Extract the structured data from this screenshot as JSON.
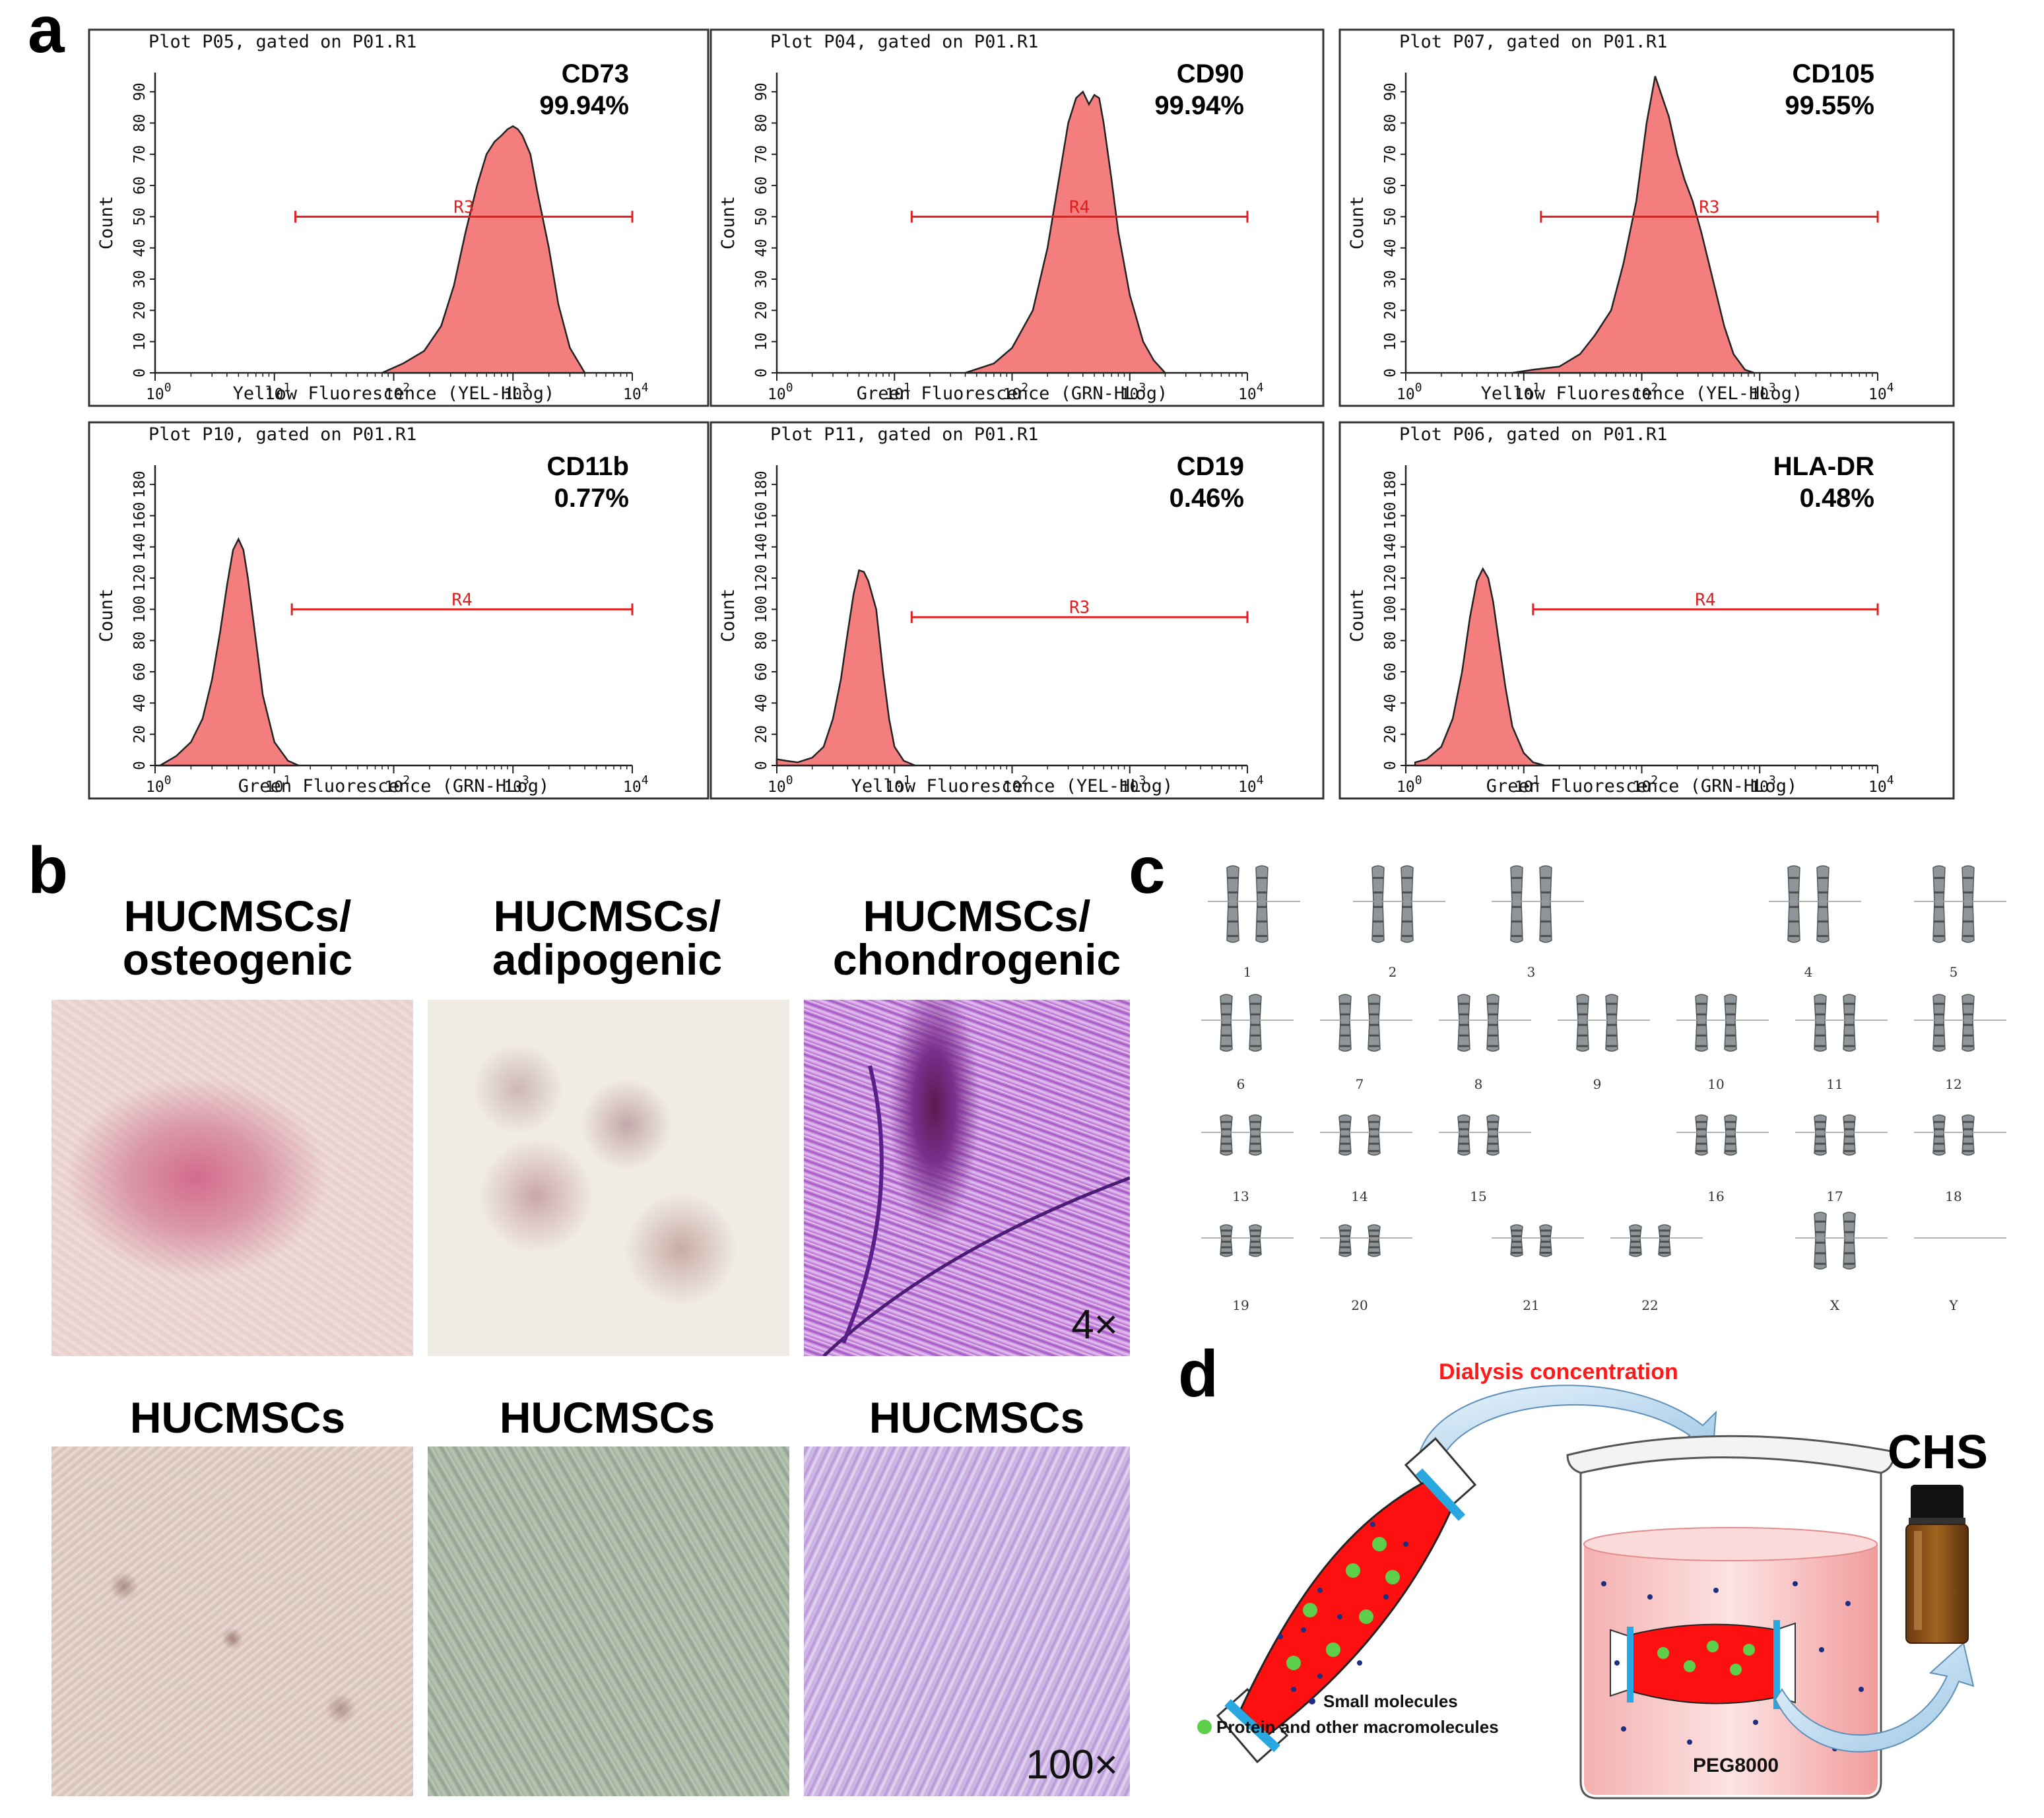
{
  "panel_labels": {
    "a": "a",
    "b": "b",
    "c": "c",
    "d": "d"
  },
  "chart_data": [
    {
      "type": "area",
      "panel": "CD73",
      "title": "Plot P05, gated on P01.R1",
      "marker": "CD73",
      "percent": "99.94%",
      "xlabel": "Yellow Fluorescence (YEL-HLog)",
      "ylabel": "Count",
      "xscale": "log",
      "xlim": [
        1,
        10000
      ],
      "ylim": [
        0,
        100
      ],
      "yticks": [
        0,
        10,
        20,
        30,
        40,
        50,
        60,
        70,
        80,
        90
      ],
      "xticks": [
        "10",
        "10",
        "10",
        "10",
        "10"
      ],
      "xtick_exp": [
        "0",
        "1",
        "2",
        "3",
        "4"
      ],
      "gate": {
        "label": "R3",
        "x_start": 15,
        "x_end": 10000,
        "y": 50
      },
      "series": [
        {
          "name": "CD73",
          "x": [
            80,
            120,
            180,
            250,
            320,
            400,
            500,
            600,
            700,
            800,
            900,
            1000,
            1100,
            1200,
            1400,
            1600,
            2000,
            2400,
            3000,
            4000
          ],
          "y": [
            0,
            3,
            7,
            15,
            28,
            45,
            60,
            70,
            74,
            76,
            78,
            79,
            78,
            76,
            70,
            58,
            40,
            22,
            8,
            0
          ]
        }
      ]
    },
    {
      "type": "area",
      "panel": "CD90",
      "title": "Plot P04, gated on P01.R1",
      "marker": "CD90",
      "percent": "99.94%",
      "xlabel": "Green Fluorescence (GRN-HLog)",
      "ylabel": "Count",
      "xscale": "log",
      "xlim": [
        1,
        10000
      ],
      "ylim": [
        0,
        100
      ],
      "yticks": [
        0,
        10,
        20,
        30,
        40,
        50,
        60,
        70,
        80,
        90
      ],
      "xticks": [
        "10",
        "10",
        "10",
        "10",
        "10"
      ],
      "xtick_exp": [
        "0",
        "1",
        "2",
        "3",
        "4"
      ],
      "gate": {
        "label": "R4",
        "x_start": 14,
        "x_end": 10000,
        "y": 50
      },
      "series": [
        {
          "name": "CD90",
          "x": [
            40,
            70,
            100,
            150,
            200,
            250,
            300,
            350,
            400,
            450,
            500,
            550,
            600,
            700,
            800,
            1000,
            1300,
            1600,
            2000
          ],
          "y": [
            0,
            3,
            8,
            20,
            40,
            62,
            80,
            88,
            90,
            86,
            89,
            88,
            80,
            62,
            45,
            25,
            10,
            4,
            0
          ]
        }
      ]
    },
    {
      "type": "area",
      "panel": "CD105",
      "title": "Plot P07, gated on P01.R1",
      "marker": "CD105",
      "percent": "99.55%",
      "xlabel": "Yellow Fluorescence (YEL-HLog)",
      "ylabel": "Count",
      "xscale": "log",
      "xlim": [
        1,
        10000
      ],
      "ylim": [
        0,
        100
      ],
      "yticks": [
        0,
        10,
        20,
        30,
        40,
        50,
        60,
        70,
        80,
        90
      ],
      "xticks": [
        "10",
        "10",
        "10",
        "10",
        "10"
      ],
      "xtick_exp": [
        "0",
        "1",
        "2",
        "3",
        "4"
      ],
      "gate": {
        "label": "R3",
        "x_start": 14,
        "x_end": 10000,
        "y": 50
      },
      "series": [
        {
          "name": "CD105",
          "x": [
            8,
            12,
            20,
            30,
            40,
            55,
            70,
            90,
            110,
            130,
            150,
            170,
            200,
            230,
            270,
            320,
            400,
            500,
            600,
            750,
            900
          ],
          "y": [
            0,
            1,
            2,
            6,
            12,
            20,
            35,
            55,
            80,
            95,
            88,
            82,
            70,
            62,
            55,
            45,
            30,
            15,
            6,
            1,
            0
          ]
        }
      ]
    },
    {
      "type": "area",
      "panel": "CD11b",
      "title": "Plot P10, gated on P01.R1",
      "marker": "CD11b",
      "percent": "0.77%",
      "xlabel": "Green Fluorescence (GRN-HLog)",
      "ylabel": "Count",
      "xscale": "log",
      "xlim": [
        1,
        10000
      ],
      "ylim": [
        0,
        200
      ],
      "yticks": [
        0,
        20,
        40,
        60,
        80,
        100,
        120,
        140,
        160,
        180
      ],
      "xticks": [
        "10",
        "10",
        "10",
        "10",
        "10"
      ],
      "xtick_exp": [
        "0",
        "1",
        "2",
        "3",
        "4"
      ],
      "gate": {
        "label": "R4",
        "x_start": 14,
        "x_end": 10000,
        "y": 100
      },
      "series": [
        {
          "name": "CD11b",
          "x": [
            1.1,
            1.5,
            2,
            2.5,
            3,
            3.5,
            4,
            4.5,
            5,
            5.5,
            6,
            7,
            8,
            10,
            13,
            16
          ],
          "y": [
            0,
            6,
            15,
            30,
            55,
            85,
            115,
            138,
            145,
            138,
            120,
            80,
            45,
            15,
            3,
            0
          ]
        }
      ]
    },
    {
      "type": "area",
      "panel": "CD19",
      "title": "Plot P11, gated on P01.R1",
      "marker": "CD19",
      "percent": "0.46%",
      "xlabel": "Yellow Fluorescence (YEL-HLog)",
      "ylabel": "Count",
      "xscale": "log",
      "xlim": [
        1,
        10000
      ],
      "ylim": [
        0,
        200
      ],
      "yticks": [
        0,
        20,
        40,
        60,
        80,
        100,
        120,
        140,
        160,
        180
      ],
      "xticks": [
        "10",
        "10",
        "10",
        "10",
        "10"
      ],
      "xtick_exp": [
        "0",
        "1",
        "2",
        "3",
        "4"
      ],
      "gate": {
        "label": "R3",
        "x_start": 14,
        "x_end": 10000,
        "y": 95
      },
      "series": [
        {
          "name": "CD19",
          "x": [
            1,
            1.2,
            1.5,
            2,
            2.5,
            3,
            3.5,
            4,
            4.5,
            5,
            5.5,
            6,
            7,
            8,
            9,
            10,
            12,
            15
          ],
          "y": [
            4,
            3,
            2,
            5,
            12,
            30,
            55,
            85,
            110,
            125,
            124,
            118,
            100,
            60,
            30,
            12,
            3,
            0
          ]
        }
      ]
    },
    {
      "type": "area",
      "panel": "HLA-DR",
      "title": "Plot P06, gated on P01.R1",
      "marker": "HLA-DR",
      "percent": "0.48%",
      "xlabel": "Green Fluorescence (GRN-HLog)",
      "ylabel": "Count",
      "xscale": "log",
      "xlim": [
        1,
        10000
      ],
      "ylim": [
        0,
        200
      ],
      "yticks": [
        0,
        20,
        40,
        60,
        80,
        100,
        120,
        140,
        160,
        180
      ],
      "xticks": [
        "10",
        "10",
        "10",
        "10",
        "10"
      ],
      "xtick_exp": [
        "0",
        "1",
        "2",
        "3",
        "4"
      ],
      "gate": {
        "label": "R4",
        "x_start": 12,
        "x_end": 10000,
        "y": 100
      },
      "series": [
        {
          "name": "HLA-DR",
          "x": [
            1.2,
            1.5,
            2,
            2.5,
            3,
            3.5,
            4,
            4.5,
            5,
            5.5,
            6,
            7,
            8,
            10,
            12,
            15
          ],
          "y": [
            2,
            4,
            12,
            30,
            60,
            95,
            118,
            126,
            120,
            105,
            85,
            50,
            25,
            8,
            2,
            0
          ]
        }
      ]
    }
  ],
  "panel_b": {
    "titles_top": [
      {
        "line1": "HUCMSCs/",
        "line2": "osteogenic"
      },
      {
        "line1": "HUCMSCs/",
        "line2": "adipogenic"
      },
      {
        "line1": "HUCMSCs/",
        "line2": "chondrogenic"
      }
    ],
    "titles_bottom": [
      "HUCMSCs",
      "HUCMSCs",
      "HUCMSCs"
    ],
    "mag_top": "4×",
    "mag_bottom": "100×",
    "colors": {
      "osteo": "#d89aa6",
      "adipo": "#c9a08c",
      "chondro": "#9b3fc0",
      "ctrl_osteo": "#d9c6c0",
      "ctrl_adipo": "#aab4a4",
      "ctrl_chondro": "#c9aee0"
    }
  },
  "panel_c": {
    "row1": [
      "1",
      "2",
      "3",
      "4",
      "5"
    ],
    "row2": [
      "6",
      "7",
      "8",
      "9",
      "10",
      "11",
      "12"
    ],
    "row3": [
      "13",
      "14",
      "15",
      "16",
      "17",
      "18"
    ],
    "row4": [
      "19",
      "20",
      "21",
      "22",
      "X",
      "Y"
    ]
  },
  "panel_d": {
    "title": "Dialysis concentration",
    "product": "CHS",
    "solution": "PEG8000",
    "legend_small": "Small molecules",
    "legend_protein": "Protein and other macromolecules",
    "colors": {
      "title": "#ff1a1a",
      "bag": "#ff0000",
      "clip": "#29a7e0",
      "protein": "#5ecf4a",
      "small": "#1f2f80",
      "beaker_liquid": "#f6a6a6"
    }
  }
}
